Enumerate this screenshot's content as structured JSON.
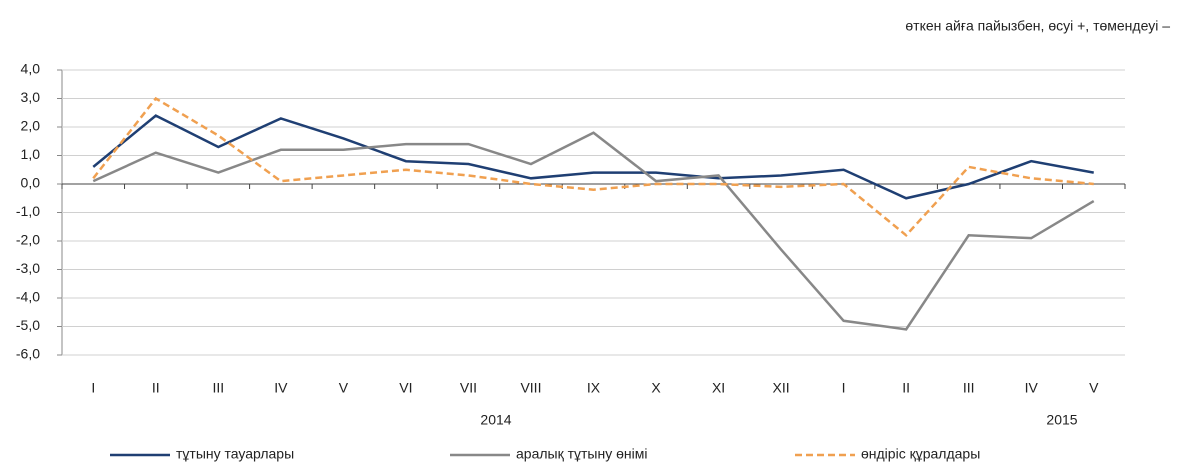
{
  "chart_data": {
    "type": "line",
    "subtitle": "өткен айға пайызбен, өсуі +, төмендеуі –",
    "categories": [
      "I",
      "II",
      "III",
      "IV",
      "V",
      "VI",
      "VII",
      "VIII",
      "IX",
      "X",
      "XI",
      "XII",
      "I",
      "II",
      "III",
      "IV",
      "V"
    ],
    "year_labels": [
      "2014",
      "2015"
    ],
    "series": [
      {
        "name": "тұтыну тауарлары",
        "color": "#1f3f73",
        "style": "solid",
        "values": [
          0.6,
          2.4,
          1.3,
          2.3,
          1.6,
          0.8,
          0.7,
          0.2,
          0.4,
          0.4,
          0.2,
          0.3,
          0.5,
          -0.5,
          0.0,
          0.8,
          0.4
        ]
      },
      {
        "name": "аралық тұтыну өнімі",
        "color": "#888888",
        "style": "solid",
        "values": [
          0.1,
          1.1,
          0.4,
          1.2,
          1.2,
          1.4,
          1.4,
          0.7,
          1.8,
          0.1,
          0.3,
          -2.3,
          -4.8,
          -5.1,
          -1.8,
          -1.9,
          -0.6
        ]
      },
      {
        "name": "өндіріс құралдары",
        "color": "#f0a050",
        "style": "dashed",
        "values": [
          0.2,
          3.0,
          1.7,
          0.1,
          0.3,
          0.5,
          0.3,
          0.0,
          -0.2,
          0.0,
          0.0,
          -0.1,
          0.0,
          -1.8,
          0.6,
          0.2,
          0.0
        ]
      }
    ],
    "ylim": [
      -6,
      4
    ],
    "yticks": [
      {
        "value": -6,
        "label": "-6,0"
      },
      {
        "value": -5,
        "label": "-5,0"
      },
      {
        "value": -4,
        "label": "-4,0"
      },
      {
        "value": -3,
        "label": "-3,0"
      },
      {
        "value": -2,
        "label": "-2,0"
      },
      {
        "value": -1,
        "label": "-1,0"
      },
      {
        "value": 0,
        "label": "0,0"
      },
      {
        "value": 1,
        "label": "1,0"
      },
      {
        "value": 2,
        "label": "2,0"
      },
      {
        "value": 3,
        "label": "3,0"
      },
      {
        "value": 4,
        "label": "4,0"
      }
    ],
    "grid": true,
    "legend": "bottom"
  }
}
